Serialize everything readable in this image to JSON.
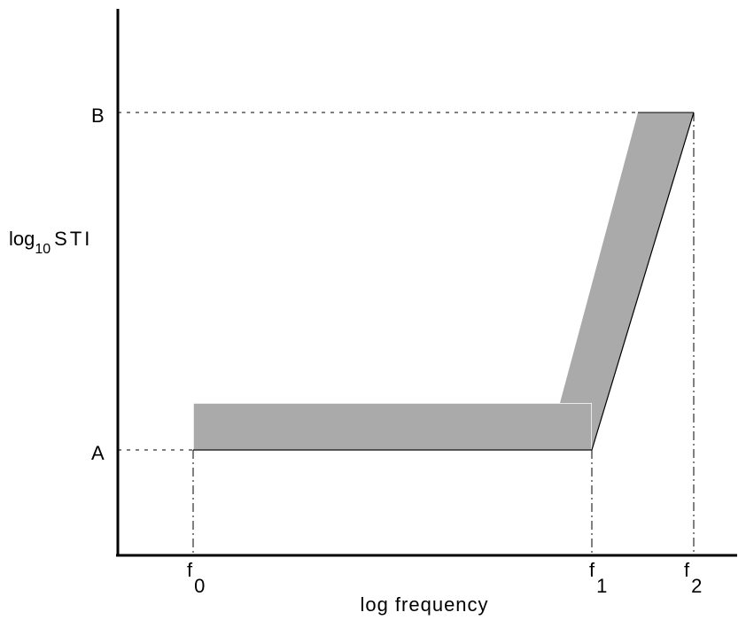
{
  "diagram": {
    "y_label": {
      "prefix": "log",
      "subscript": "10",
      "suffix": "STI"
    },
    "x_label": "log frequency",
    "y_levels": {
      "a": "A",
      "b": "B"
    },
    "x_markers": [
      {
        "base": "f",
        "sub": "0"
      },
      {
        "base": "f",
        "sub": "1"
      },
      {
        "base": "f",
        "sub": "2"
      }
    ],
    "colors": {
      "band_fill": "#aaaaaa",
      "axis": "#000000",
      "guide": "#000000"
    }
  }
}
